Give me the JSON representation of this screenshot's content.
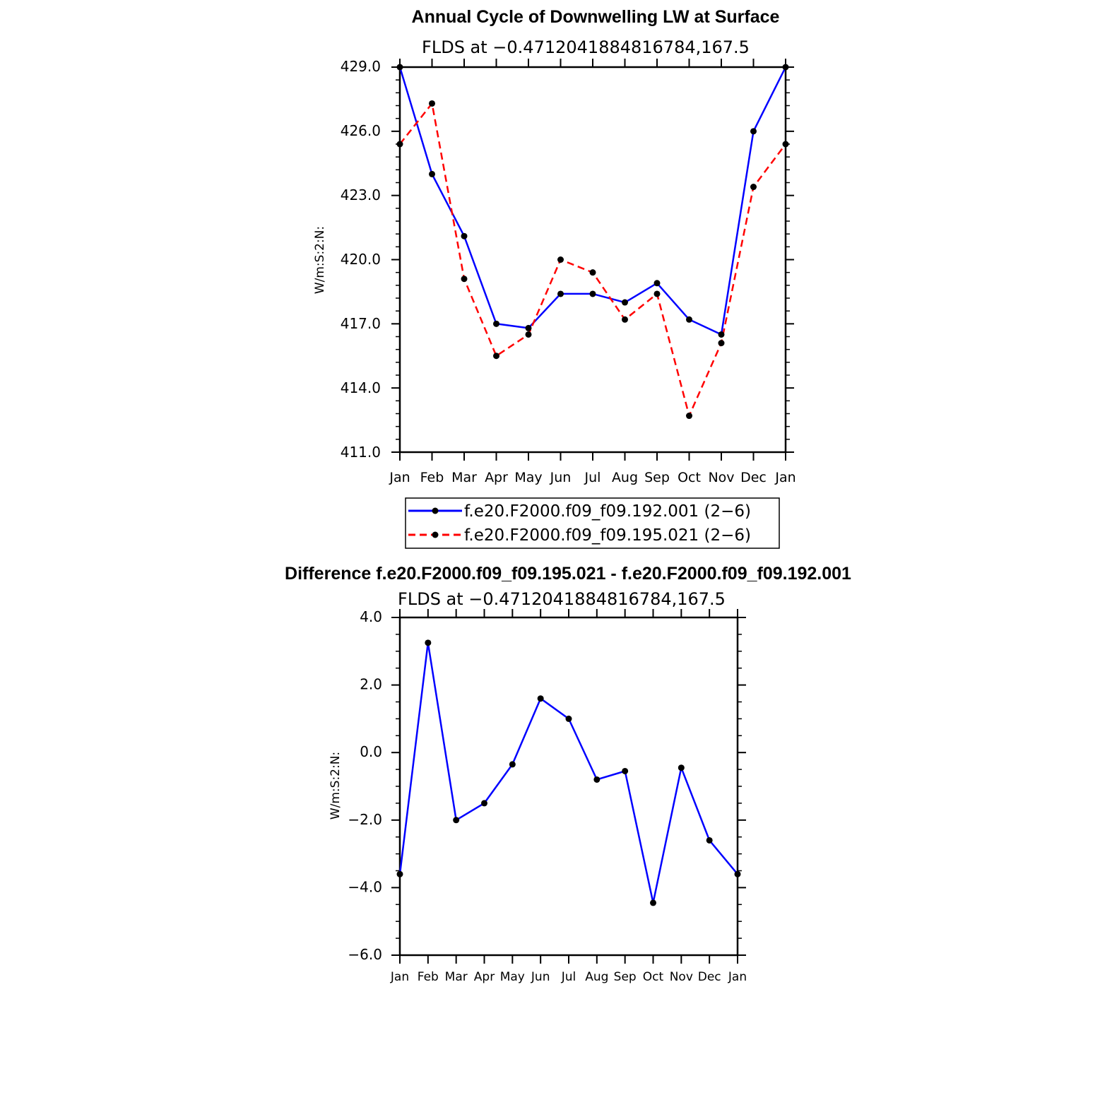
{
  "chart_data": [
    {
      "type": "line",
      "title": "Annual Cycle of Downwelling LW at Surface",
      "subtitle": "FLDS at −0.4712041884816784,167.5",
      "ylabel": "W/m:S:2:N:",
      "xlabel": "",
      "categories": [
        "Jan",
        "Feb",
        "Mar",
        "Apr",
        "May",
        "Jun",
        "Jul",
        "Aug",
        "Sep",
        "Oct",
        "Nov",
        "Dec",
        "Jan"
      ],
      "ylim": [
        411.0,
        429.0
      ],
      "yticks": [
        "411.0",
        "414.0",
        "417.0",
        "420.0",
        "423.0",
        "426.0",
        "429.0"
      ],
      "legend_position": "bottom",
      "series": [
        {
          "name": "f.e20.F2000.f09_f09.192.001 (2−6)",
          "color": "#0000ff",
          "style": "solid",
          "values": [
            429.0,
            424.0,
            421.1,
            417.0,
            416.8,
            418.4,
            418.4,
            418.0,
            418.9,
            417.2,
            416.5,
            426.0,
            429.0
          ]
        },
        {
          "name": "f.e20.F2000.f09_f09.195.021 (2−6)",
          "color": "#ff0000",
          "style": "dashed",
          "values": [
            425.4,
            427.3,
            419.1,
            415.5,
            416.5,
            420.0,
            419.4,
            417.2,
            418.4,
            412.7,
            416.1,
            423.4,
            425.4
          ]
        }
      ]
    },
    {
      "type": "line",
      "title": "Difference f.e20.F2000.f09_f09.195.021 - f.e20.F2000.f09_f09.192.001",
      "subtitle": "FLDS at −0.4712041884816784,167.5",
      "ylabel": "W/m:S:2:N:",
      "xlabel": "",
      "categories": [
        "Jan",
        "Feb",
        "Mar",
        "Apr",
        "May",
        "Jun",
        "Jul",
        "Aug",
        "Sep",
        "Oct",
        "Nov",
        "Dec",
        "Jan"
      ],
      "ylim": [
        -6.0,
        4.0
      ],
      "yticks": [
        "−6.0",
        "−4.0",
        "−2.0",
        "0.0",
        "2.0",
        "4.0"
      ],
      "series": [
        {
          "name": "Difference",
          "color": "#0000ff",
          "style": "solid",
          "values": [
            -3.6,
            3.25,
            -2.0,
            -1.5,
            -0.35,
            1.6,
            1.0,
            -0.8,
            -0.55,
            -4.45,
            -0.45,
            -2.6,
            -3.6
          ]
        }
      ]
    }
  ]
}
